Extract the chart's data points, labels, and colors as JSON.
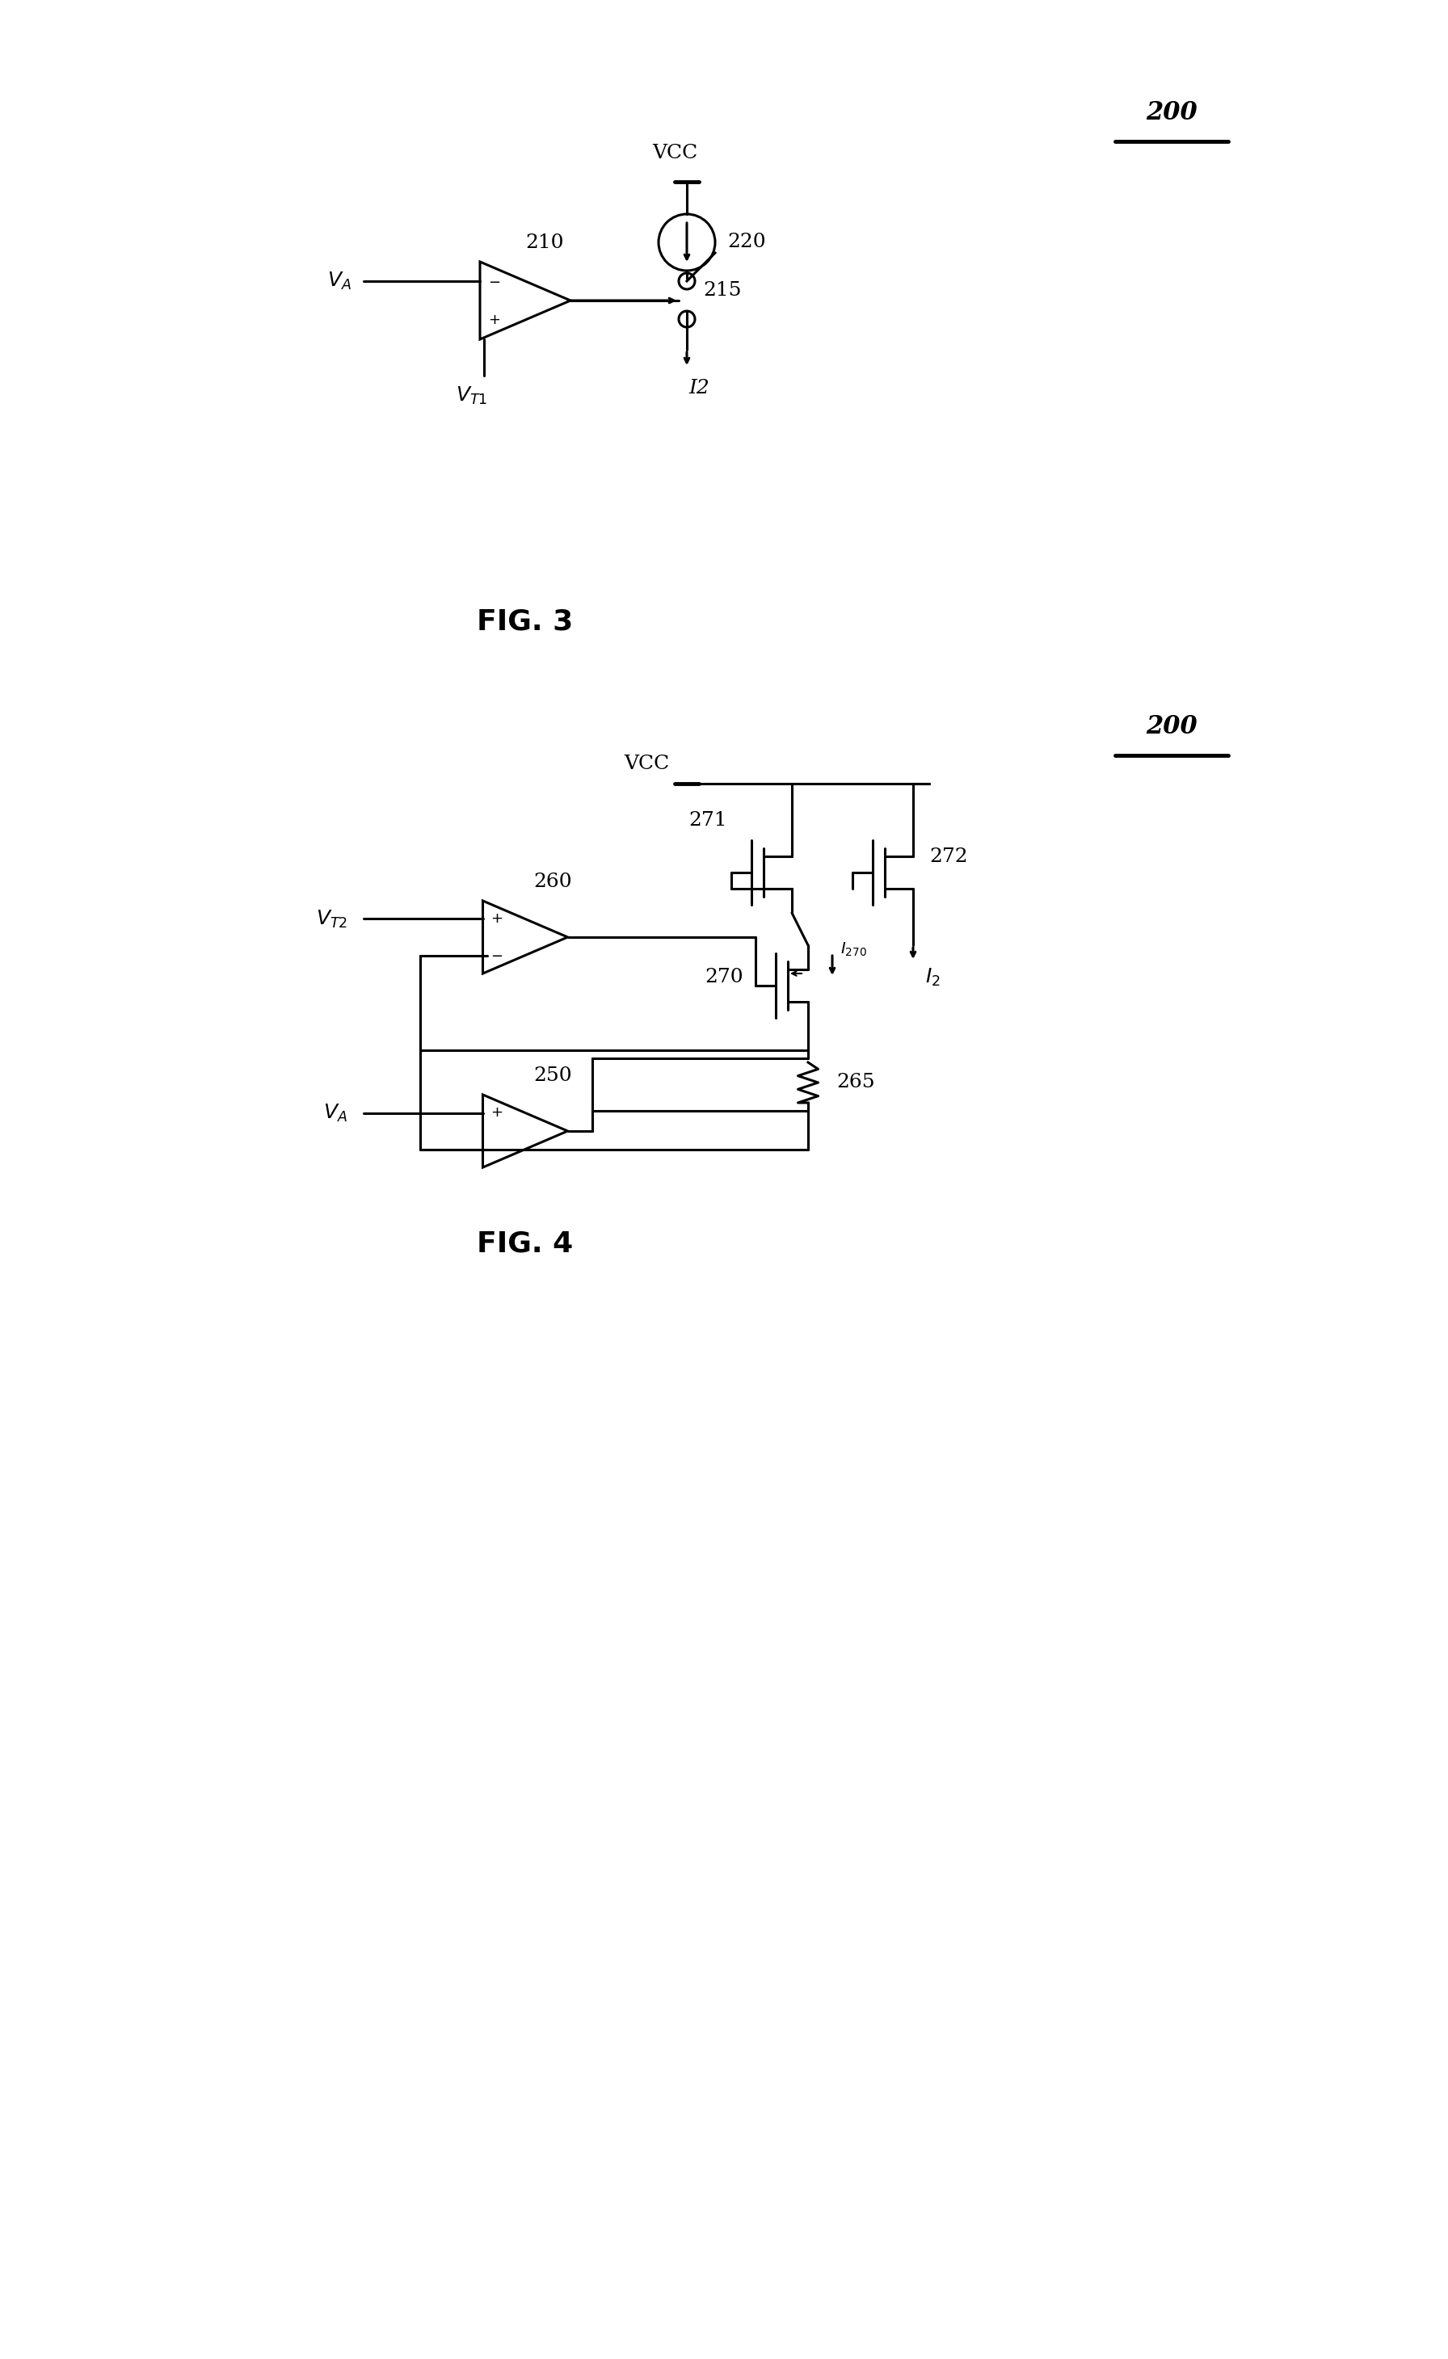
{
  "bg_color": "#ffffff",
  "fig3": {
    "label": "200",
    "fig_label": "FIG. 3",
    "vcc_label": "VCC",
    "cs220_label": "220",
    "switch_label": "215",
    "comp_label": "210",
    "va_label": "VA",
    "vt1_label": "VT1",
    "i2_label": "I2"
  },
  "fig4": {
    "label": "200",
    "fig_label": "FIG. 4",
    "vcc_label": "VCC",
    "vt2_label": "VT2",
    "va_label": "VA",
    "comp260_label": "260",
    "comp250_label": "250",
    "m270_label": "270",
    "m271_label": "271",
    "m272_label": "272",
    "r265_label": "265",
    "i270_label": "I270",
    "i2_label": "I2"
  }
}
